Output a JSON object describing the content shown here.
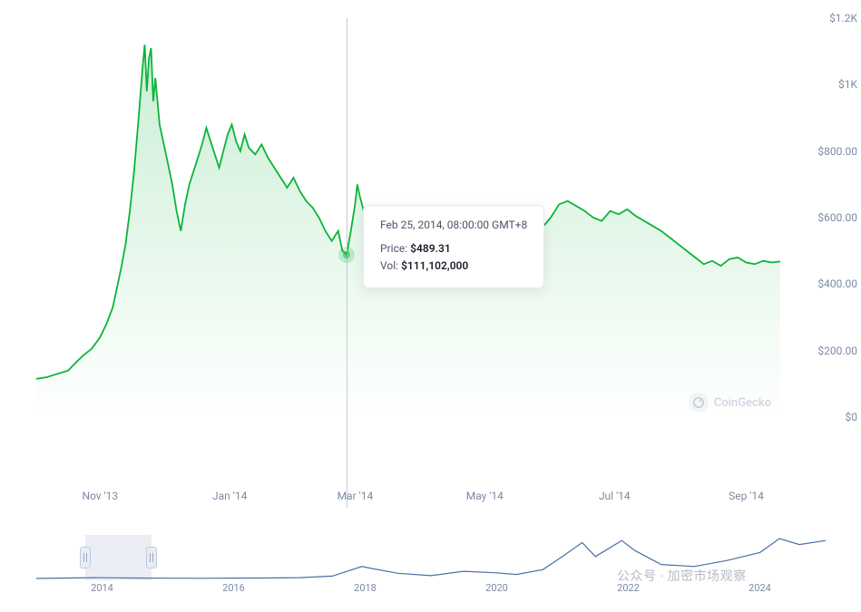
{
  "chart": {
    "type": "area",
    "line_color": "#0cb43a",
    "fill_top": "rgba(12,180,58,0.22)",
    "fill_bottom": "rgba(12,180,58,0.00)",
    "line_width": 1.8,
    "background": "#ffffff",
    "y_axis": {
      "min": 0,
      "max": 1200,
      "ticks": [
        {
          "v": 0,
          "label": "$0"
        },
        {
          "v": 200,
          "label": "$200.00"
        },
        {
          "v": 400,
          "label": "$400.00"
        },
        {
          "v": 600,
          "label": "$600.00"
        },
        {
          "v": 800,
          "label": "$800.00"
        },
        {
          "v": 1000,
          "label": "$1K"
        },
        {
          "v": 1200,
          "label": "$1.2K"
        }
      ],
      "label_color": "#7d8aa3",
      "label_fontsize": 12
    },
    "x_axis": {
      "labels": [
        {
          "t": 30,
          "label": "Nov '13"
        },
        {
          "t": 91,
          "label": "Jan '14"
        },
        {
          "t": 150,
          "label": "Mar '14"
        },
        {
          "t": 211,
          "label": "May '14"
        },
        {
          "t": 272,
          "label": "Jul '14"
        },
        {
          "t": 334,
          "label": "Sep '14"
        }
      ],
      "range_days": 350,
      "label_color": "#7d8aa3",
      "label_fontsize": 12
    },
    "series": [
      {
        "t": 0,
        "v": 115
      },
      {
        "t": 5,
        "v": 120
      },
      {
        "t": 10,
        "v": 130
      },
      {
        "t": 15,
        "v": 140
      },
      {
        "t": 18,
        "v": 160
      },
      {
        "t": 22,
        "v": 185
      },
      {
        "t": 26,
        "v": 205
      },
      {
        "t": 30,
        "v": 240
      },
      {
        "t": 33,
        "v": 280
      },
      {
        "t": 36,
        "v": 330
      },
      {
        "t": 38,
        "v": 390
      },
      {
        "t": 40,
        "v": 450
      },
      {
        "t": 42,
        "v": 520
      },
      {
        "t": 44,
        "v": 620
      },
      {
        "t": 46,
        "v": 740
      },
      {
        "t": 48,
        "v": 890
      },
      {
        "t": 50,
        "v": 1050
      },
      {
        "t": 51,
        "v": 1120
      },
      {
        "t": 52,
        "v": 980
      },
      {
        "t": 53,
        "v": 1080
      },
      {
        "t": 54,
        "v": 1110
      },
      {
        "t": 55,
        "v": 950
      },
      {
        "t": 56,
        "v": 1020
      },
      {
        "t": 58,
        "v": 880
      },
      {
        "t": 60,
        "v": 820
      },
      {
        "t": 62,
        "v": 760
      },
      {
        "t": 64,
        "v": 700
      },
      {
        "t": 66,
        "v": 620
      },
      {
        "t": 68,
        "v": 560
      },
      {
        "t": 70,
        "v": 640
      },
      {
        "t": 72,
        "v": 700
      },
      {
        "t": 74,
        "v": 740
      },
      {
        "t": 76,
        "v": 780
      },
      {
        "t": 78,
        "v": 820
      },
      {
        "t": 80,
        "v": 870
      },
      {
        "t": 82,
        "v": 830
      },
      {
        "t": 84,
        "v": 790
      },
      {
        "t": 86,
        "v": 750
      },
      {
        "t": 88,
        "v": 800
      },
      {
        "t": 90,
        "v": 850
      },
      {
        "t": 92,
        "v": 880
      },
      {
        "t": 94,
        "v": 830
      },
      {
        "t": 96,
        "v": 800
      },
      {
        "t": 98,
        "v": 850
      },
      {
        "t": 100,
        "v": 810
      },
      {
        "t": 103,
        "v": 790
      },
      {
        "t": 106,
        "v": 820
      },
      {
        "t": 109,
        "v": 780
      },
      {
        "t": 112,
        "v": 750
      },
      {
        "t": 115,
        "v": 720
      },
      {
        "t": 118,
        "v": 690
      },
      {
        "t": 121,
        "v": 720
      },
      {
        "t": 124,
        "v": 680
      },
      {
        "t": 127,
        "v": 650
      },
      {
        "t": 130,
        "v": 630
      },
      {
        "t": 133,
        "v": 600
      },
      {
        "t": 136,
        "v": 560
      },
      {
        "t": 139,
        "v": 530
      },
      {
        "t": 142,
        "v": 560
      },
      {
        "t": 144,
        "v": 500
      },
      {
        "t": 146,
        "v": 489
      },
      {
        "t": 148,
        "v": 560
      },
      {
        "t": 150,
        "v": 640
      },
      {
        "t": 151,
        "v": 700
      },
      {
        "t": 152,
        "v": 670
      },
      {
        "t": 154,
        "v": 620
      },
      {
        "t": 157,
        "v": 590
      },
      {
        "t": 160,
        "v": 560
      },
      {
        "t": 163,
        "v": 530
      },
      {
        "t": 166,
        "v": 500
      },
      {
        "t": 170,
        "v": 470
      },
      {
        "t": 174,
        "v": 440
      },
      {
        "t": 178,
        "v": 420
      },
      {
        "t": 182,
        "v": 440
      },
      {
        "t": 186,
        "v": 465
      },
      {
        "t": 190,
        "v": 485
      },
      {
        "t": 194,
        "v": 510
      },
      {
        "t": 198,
        "v": 450
      },
      {
        "t": 202,
        "v": 430
      },
      {
        "t": 206,
        "v": 440
      },
      {
        "t": 210,
        "v": 450
      },
      {
        "t": 214,
        "v": 460
      },
      {
        "t": 218,
        "v": 480
      },
      {
        "t": 222,
        "v": 520
      },
      {
        "t": 226,
        "v": 560
      },
      {
        "t": 230,
        "v": 590
      },
      {
        "t": 234,
        "v": 580
      },
      {
        "t": 238,
        "v": 570
      },
      {
        "t": 242,
        "v": 600
      },
      {
        "t": 246,
        "v": 640
      },
      {
        "t": 250,
        "v": 650
      },
      {
        "t": 254,
        "v": 635
      },
      {
        "t": 258,
        "v": 620
      },
      {
        "t": 262,
        "v": 600
      },
      {
        "t": 266,
        "v": 590
      },
      {
        "t": 270,
        "v": 620
      },
      {
        "t": 274,
        "v": 610
      },
      {
        "t": 278,
        "v": 625
      },
      {
        "t": 282,
        "v": 605
      },
      {
        "t": 286,
        "v": 590
      },
      {
        "t": 290,
        "v": 575
      },
      {
        "t": 294,
        "v": 560
      },
      {
        "t": 298,
        "v": 540
      },
      {
        "t": 302,
        "v": 520
      },
      {
        "t": 306,
        "v": 500
      },
      {
        "t": 310,
        "v": 480
      },
      {
        "t": 314,
        "v": 460
      },
      {
        "t": 318,
        "v": 470
      },
      {
        "t": 322,
        "v": 455
      },
      {
        "t": 326,
        "v": 475
      },
      {
        "t": 330,
        "v": 480
      },
      {
        "t": 334,
        "v": 465
      },
      {
        "t": 338,
        "v": 460
      },
      {
        "t": 342,
        "v": 470
      },
      {
        "t": 346,
        "v": 465
      },
      {
        "t": 350,
        "v": 468
      }
    ],
    "hover": {
      "t": 146,
      "v": 489.31,
      "dot_color": "#0cb43a",
      "dot_halo": "rgba(12,180,58,0.35)",
      "crosshair_color": "#c4ccd8"
    },
    "tooltip": {
      "date": "Feb 25, 2014, 08:00:00 GMT+8",
      "price_label": "Price:",
      "price_value": "$489.31",
      "vol_label": "Vol:",
      "vol_value": "$111,102,000",
      "bg": "#ffffff",
      "border": "#e5e9f0",
      "text_color": "#4a5568",
      "value_color": "#1a202c"
    },
    "watermark": {
      "text": "CoinGecko",
      "color": "#a0aec0",
      "icon_bg": "#e8ecef",
      "icon_glyph_color": "#8fa0b5"
    }
  },
  "range_selector": {
    "line_color": "#4a6fa5",
    "line_width": 1.2,
    "x_min": 2013,
    "x_max": 2025,
    "ticks": [
      {
        "yr": 2014,
        "label": "2014"
      },
      {
        "yr": 2016,
        "label": "2016"
      },
      {
        "yr": 2018,
        "label": "2018"
      },
      {
        "yr": 2020,
        "label": "2020"
      },
      {
        "yr": 2022,
        "label": "2022"
      },
      {
        "yr": 2024,
        "label": "2024"
      }
    ],
    "window": {
      "from": 2013.75,
      "to": 2014.75
    },
    "handle_bg": "#e8edf5",
    "handle_border": "#c0cada",
    "series": [
      {
        "x": 2013.0,
        "y": 0.0
      },
      {
        "x": 2013.9,
        "y": 0.02
      },
      {
        "x": 2014.0,
        "y": 0.018
      },
      {
        "x": 2014.5,
        "y": 0.012
      },
      {
        "x": 2015.0,
        "y": 0.006
      },
      {
        "x": 2015.5,
        "y": 0.005
      },
      {
        "x": 2016.0,
        "y": 0.009
      },
      {
        "x": 2016.5,
        "y": 0.012
      },
      {
        "x": 2017.0,
        "y": 0.02
      },
      {
        "x": 2017.5,
        "y": 0.06
      },
      {
        "x": 2017.95,
        "y": 0.3
      },
      {
        "x": 2018.1,
        "y": 0.25
      },
      {
        "x": 2018.5,
        "y": 0.13
      },
      {
        "x": 2019.0,
        "y": 0.07
      },
      {
        "x": 2019.5,
        "y": 0.18
      },
      {
        "x": 2020.0,
        "y": 0.14
      },
      {
        "x": 2020.3,
        "y": 0.1
      },
      {
        "x": 2020.7,
        "y": 0.22
      },
      {
        "x": 2021.0,
        "y": 0.55
      },
      {
        "x": 2021.3,
        "y": 0.9
      },
      {
        "x": 2021.5,
        "y": 0.55
      },
      {
        "x": 2021.9,
        "y": 0.95
      },
      {
        "x": 2022.1,
        "y": 0.7
      },
      {
        "x": 2022.5,
        "y": 0.35
      },
      {
        "x": 2023.0,
        "y": 0.3
      },
      {
        "x": 2023.5,
        "y": 0.45
      },
      {
        "x": 2024.0,
        "y": 0.65
      },
      {
        "x": 2024.3,
        "y": 1.0
      },
      {
        "x": 2024.6,
        "y": 0.85
      },
      {
        "x": 2025.0,
        "y": 0.95
      }
    ]
  },
  "overlay_text": "公众号 · 加密市场观察"
}
